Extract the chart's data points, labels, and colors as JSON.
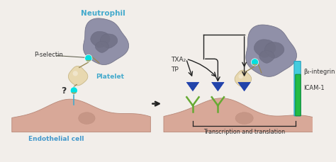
{
  "bg_color": "#f2eeea",
  "neutrophil_color": "#9090a8",
  "neutrophil_dark": "#6a6a80",
  "nucleus_color": "#707085",
  "platelet_color": "#e8d8b0",
  "platelet_dark": "#c8b888",
  "endothelial_color": "#d8a898",
  "endothelial_dark": "#b88878",
  "selectin_color": "#00e0e0",
  "selectin_ring": "#b8a060",
  "arrow_color": "#222222",
  "blue_triangle_color": "#2244aa",
  "blue_triangle_edge": "#1133aa",
  "icam_color": "#22bb44",
  "icam_dark": "#118833",
  "beta_integrin_color": "#44ccdd",
  "beta_integrin_dark": "#2299bb",
  "green_receptor_color": "#66aa33",
  "label_neutrophil": "Neutrophil",
  "label_platelet": "Platelet",
  "label_endothelial": "Endothelial cell",
  "label_pselectin": "P-selectin",
  "label_txa2": "TXA₂",
  "label_tp": "TP",
  "label_beta_integrin": "β₂-integrin",
  "label_icam": "ICAM-1",
  "label_transcription": "Transcription and translation",
  "label_question": "?"
}
